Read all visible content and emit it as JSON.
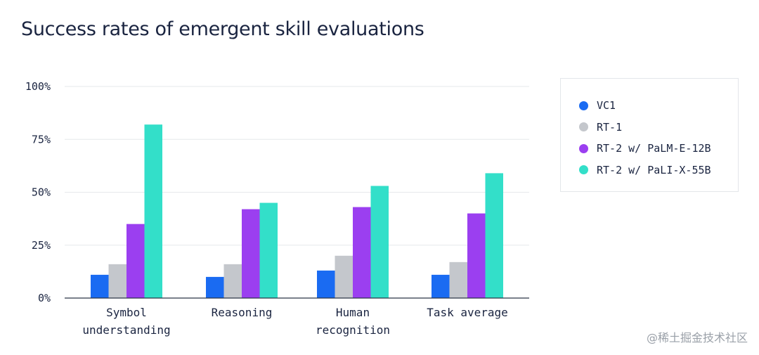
{
  "chart_data": {
    "type": "bar",
    "title": "Success rates of emergent skill evaluations",
    "categories": [
      [
        "Symbol",
        "understanding"
      ],
      [
        "Reasoning"
      ],
      [
        "Human",
        "recognition"
      ],
      [
        "Task average"
      ]
    ],
    "series": [
      {
        "name": "VC1",
        "color": "#1a6bf2",
        "values": [
          11,
          10,
          13,
          11
        ]
      },
      {
        "name": "RT-1",
        "color": "#c4c7cc",
        "values": [
          16,
          16,
          20,
          17
        ]
      },
      {
        "name": "RT-2 w/ PaLM-E-12B",
        "color": "#9b3ff0",
        "values": [
          35,
          42,
          43,
          40
        ]
      },
      {
        "name": "RT-2 w/ PaLI-X-55B",
        "color": "#33dfc9",
        "values": [
          82,
          45,
          53,
          59
        ]
      }
    ],
    "yticks": [
      "0%",
      "25%",
      "50%",
      "75%",
      "100%"
    ],
    "ylim": [
      0,
      100
    ],
    "grid": true,
    "legend_position": "right"
  },
  "watermark": "@稀土掘金技术社区"
}
